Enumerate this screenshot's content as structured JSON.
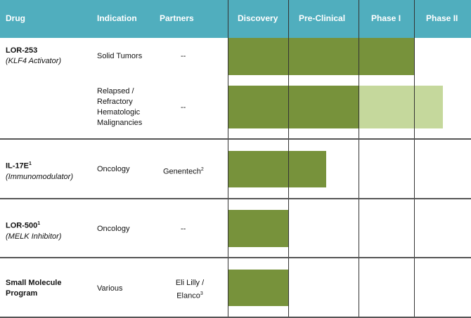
{
  "header": {
    "drug": "Drug",
    "indication": "Indication",
    "partners": "Partners",
    "phases": [
      "Discovery",
      "Pre-Clinical",
      "Phase I",
      "Phase II"
    ]
  },
  "colors": {
    "header": "#50aebe",
    "completed": "#77923b",
    "in_progress": "#c5d89c"
  },
  "rows": [
    {
      "drug": "LOR-253",
      "drug_sup": "",
      "subtitle": "(KLF4 Activator)",
      "indications": [
        {
          "indication": "Solid Tumors",
          "partner": "--",
          "partner_sup": "",
          "completed_phases": 3,
          "in_progress_to": 3
        },
        {
          "indication": "Relapsed / Refractory Hematologic Malignancies",
          "partner": "--",
          "partner_sup": "",
          "completed_phases": 2,
          "in_progress_to": 3.5
        }
      ]
    },
    {
      "drug": "IL-17E",
      "drug_sup": "1",
      "subtitle": "(Immunomodulator)",
      "indications": [
        {
          "indication": "Oncology",
          "partner": "Genentech",
          "partner_sup": "2",
          "completed_phases": 1.54,
          "in_progress_to": 1.54
        }
      ]
    },
    {
      "drug": "LOR-500",
      "drug_sup": "1",
      "subtitle": "(MELK Inhibitor)",
      "indications": [
        {
          "indication": "Oncology",
          "partner": "--",
          "partner_sup": "",
          "completed_phases": 1,
          "in_progress_to": 1
        }
      ]
    },
    {
      "drug": "Small Molecule Program",
      "drug_sup": "",
      "subtitle": "",
      "indications": [
        {
          "indication": "Various",
          "partner": "Eli Lilly / Elanco",
          "partner_sup": "3",
          "completed_phases": 1,
          "in_progress_to": 1
        }
      ]
    }
  ]
}
